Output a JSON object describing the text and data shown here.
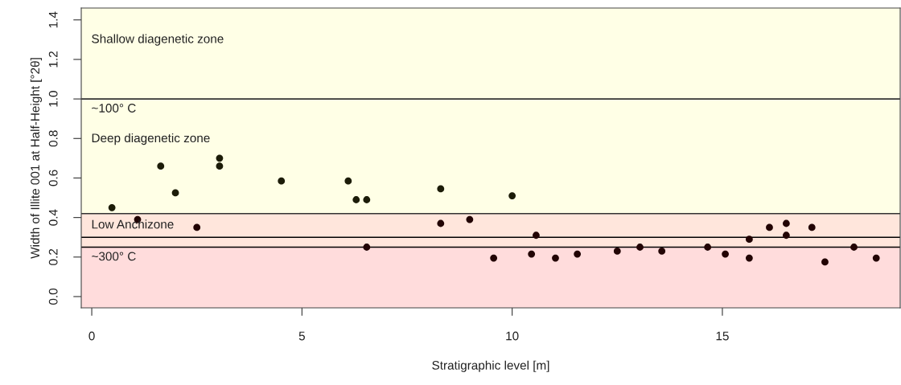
{
  "chart_data": {
    "type": "scatter",
    "xlabel": "Stratigraphic level [m]",
    "ylabel": "Width of Illite 001 at Half-Height [°2θ]",
    "x": [
      0.48,
      1.09,
      1.64,
      1.99,
      2.5,
      3.04,
      3.04,
      4.51,
      6.1,
      6.29,
      6.54,
      6.54,
      8.3,
      8.3,
      8.99,
      10.0,
      10.57,
      9.56,
      10.46,
      11.03,
      11.55,
      12.5,
      13.04,
      13.56,
      14.65,
      15.07,
      15.64,
      15.64,
      16.12,
      16.52,
      16.52,
      17.13,
      17.44,
      18.13,
      18.66
    ],
    "values": [
      0.45,
      0.39,
      0.66,
      0.525,
      0.35,
      0.7,
      0.66,
      0.585,
      0.585,
      0.49,
      0.49,
      0.25,
      0.545,
      0.37,
      0.39,
      0.51,
      0.31,
      0.195,
      0.215,
      0.195,
      0.215,
      0.23,
      0.25,
      0.23,
      0.25,
      0.215,
      0.29,
      0.195,
      0.35,
      0.37,
      0.31,
      0.35,
      0.175,
      0.25,
      0.195
    ],
    "colors": [
      "#1c1c08",
      "#220404",
      "#1c1c08",
      "#1c1c08",
      "#220404",
      "#1c1c08",
      "#1c1c08",
      "#1c1c08",
      "#1c1c08",
      "#1c1c08",
      "#1c1c08",
      "#220404",
      "#1c1c08",
      "#220404",
      "#220404",
      "#1c1c08",
      "#220404",
      "#220404",
      "#220404",
      "#220404",
      "#220404",
      "#220404",
      "#220404",
      "#220404",
      "#220404",
      "#220404",
      "#220404",
      "#220404",
      "#220404",
      "#220404",
      "#220404",
      "#220404",
      "#220404",
      "#220404",
      "#220404"
    ],
    "marker": "circle",
    "grid": false,
    "xlim": [
      -0.25,
      19.23
    ],
    "ylim": [
      -0.057,
      1.46
    ],
    "xticks": [
      0,
      5,
      10,
      15
    ],
    "yticks": [
      {
        "value": 0,
        "label": "0.0"
      },
      {
        "value": 0.2,
        "label": "0.2"
      },
      {
        "value": 0.4,
        "label": "0.4"
      },
      {
        "value": 0.6,
        "label": "0.6"
      },
      {
        "value": 0.8,
        "label": "0.8"
      },
      {
        "value": 1.0,
        "label": "1.0"
      },
      {
        "value": 1.2,
        "label": "1.2"
      },
      {
        "value": 1.4,
        "label": "1.4"
      }
    ],
    "bands": [
      {
        "axis": "y",
        "from": 1.0,
        "to": 1.46,
        "label": "Shallow diagenetic zone",
        "color": "#ffffe6"
      },
      {
        "axis": "y",
        "from": 0.42,
        "to": 1.0,
        "label": "Deep diagenetic zone",
        "color": "#ffffe6"
      },
      {
        "axis": "y",
        "from": 0.25,
        "to": 0.42,
        "label": "Low Anchizone",
        "color": "#ffe6dc"
      },
      {
        "axis": "y",
        "from": -0.057,
        "to": 0.25,
        "color": "#ffdcdc"
      }
    ],
    "ref_lines": [
      {
        "axis": "y",
        "value": 1.0,
        "label": "~100° C",
        "color": "#333333"
      },
      {
        "axis": "y",
        "value": 0.42,
        "color": "#333333"
      },
      {
        "axis": "y",
        "value": 0.3,
        "color": "#000000"
      },
      {
        "axis": "y",
        "value": 0.25,
        "label": "~300° C",
        "color": "#000000"
      }
    ]
  }
}
